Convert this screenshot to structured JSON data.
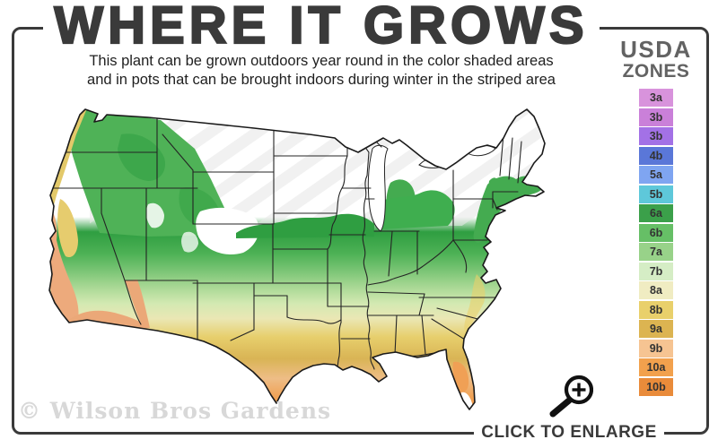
{
  "poster": {
    "title": "WHERE IT GROWS",
    "subtitle_line1": "This plant can be grown outdoors year round in the color shaded areas",
    "subtitle_line2": "and in pots that can be brought indoors during winter in the striped area",
    "watermark": "© Wilson Bros Gardens",
    "cta_label": "CLICK TO ENLARGE",
    "frame_color": "#3a3a3a",
    "title_color": "#3a3a3a"
  },
  "legend": {
    "title_line1": "USDA",
    "title_line2": "ZONES",
    "title_color": "#636363",
    "zones": [
      {
        "label": "3a",
        "color": "#d893dc"
      },
      {
        "label": "3b",
        "color": "#ca80d9"
      },
      {
        "label": "3b",
        "color": "#a371e6"
      },
      {
        "label": "4b",
        "color": "#5a77d8"
      },
      {
        "label": "5a",
        "color": "#7fa5f1"
      },
      {
        "label": "5b",
        "color": "#5ec8da"
      },
      {
        "label": "6a",
        "color": "#3ba04a"
      },
      {
        "label": "6b",
        "color": "#66bf66"
      },
      {
        "label": "7a",
        "color": "#98d289"
      },
      {
        "label": "7b",
        "color": "#d5edc5"
      },
      {
        "label": "8a",
        "color": "#f0ecc2"
      },
      {
        "label": "8b",
        "color": "#e9d06b"
      },
      {
        "label": "9a",
        "color": "#dcb451"
      },
      {
        "label": "9b",
        "color": "#f6c492"
      },
      {
        "label": "10a",
        "color": "#f2a14d"
      },
      {
        "label": "10b",
        "color": "#e98b3a"
      }
    ]
  },
  "chart_data": {
    "type": "heatmap",
    "title": "WHERE IT GROWS",
    "region": "United States",
    "legend_entries": [
      "3a",
      "3b",
      "3b",
      "4b",
      "5a",
      "5b",
      "6a",
      "6b",
      "7a",
      "7b",
      "8a",
      "8b",
      "9a",
      "9b",
      "10a",
      "10b"
    ],
    "notes": "Color-shaded USDA zone map; northern states shown white with diagonal stripes (indoor-pot area); zones grade green (6a) in the midlatitudes to orange (10b) along the Gulf, south Texas, south Florida and the California coast."
  },
  "icons": {
    "enlarge_icon": "magnifying-glass-plus"
  }
}
